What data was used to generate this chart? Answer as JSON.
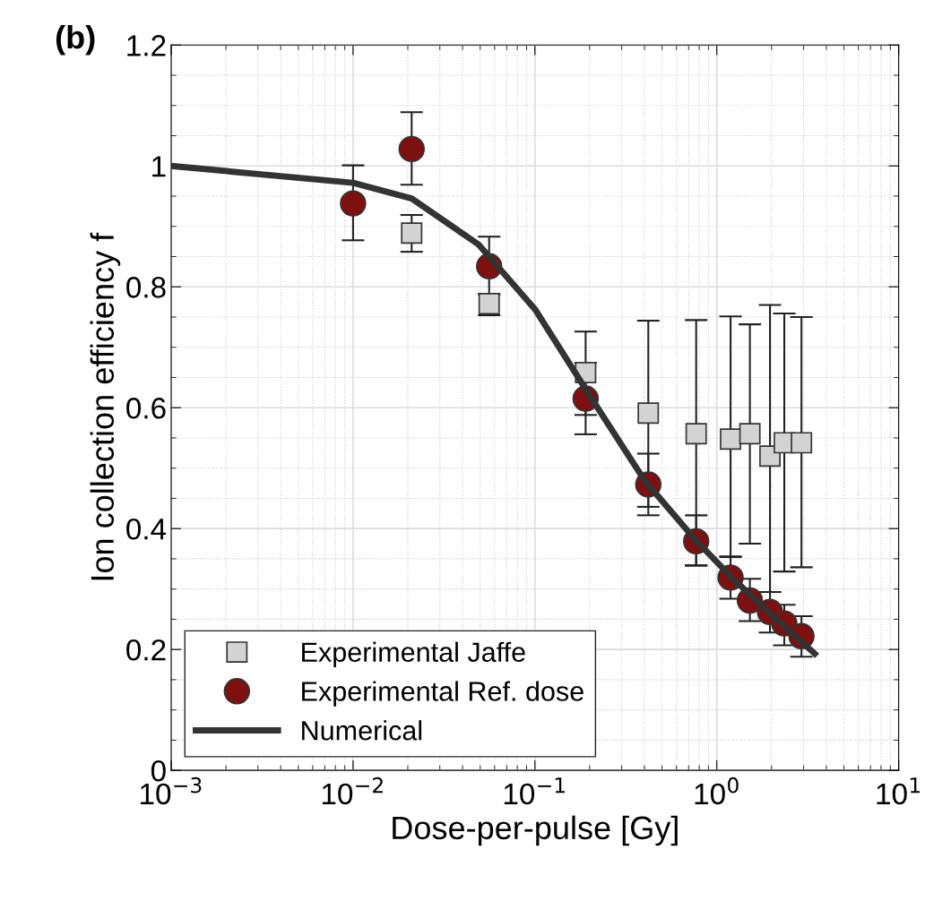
{
  "chart_data": {
    "type": "scatter",
    "title": "(b)",
    "xlabel": "Dose-per-pulse [Gy]",
    "ylabel": "Ion collection efficiency f",
    "log": "x",
    "xlim": [
      0.001,
      10
    ],
    "xticks": [
      {
        "value": 0.001,
        "label": "10$^{−3}$"
      },
      {
        "value": 0.01,
        "label": "10$^{−2}$"
      },
      {
        "value": 0.1,
        "label": "10$^{−1}$"
      },
      {
        "value": 1,
        "label": "10$^{0}$"
      },
      {
        "value": 10,
        "label": "10$^{1}$"
      }
    ],
    "ylim": [
      0,
      1.2
    ],
    "yticks": [
      0,
      0.2,
      0.4,
      0.6,
      0.8,
      1,
      1.2
    ],
    "grid": true,
    "legend": "bottom left",
    "series": [
      {
        "name": "Experimental Jaffe",
        "marker": "square",
        "color": "#d3d3d3",
        "x": [
          0.021,
          0.056,
          0.19,
          0.42,
          0.77,
          1.19,
          1.52,
          1.96,
          2.35,
          2.92
        ],
        "values": [
          0.889,
          0.772,
          0.658,
          0.591,
          0.557,
          0.548,
          0.557,
          0.52,
          0.542,
          0.542
        ],
        "errors": [
          [
            0.858,
            0.919
          ],
          [
            0.753,
            0.788
          ],
          [
            0.588,
            0.726
          ],
          [
            0.436,
            0.744
          ],
          [
            0.339,
            0.745
          ],
          [
            0.354,
            0.751
          ],
          [
            0.375,
            0.738
          ],
          [
            0.295,
            0.77
          ],
          [
            0.329,
            0.756
          ],
          [
            0.336,
            0.75
          ]
        ]
      },
      {
        "name": "Experimental Ref. dose",
        "marker": "circle",
        "color": "#7f1010",
        "x": [
          0.01,
          0.021,
          0.056,
          0.19,
          0.42,
          0.77,
          1.19,
          1.52,
          1.96,
          2.35,
          2.92
        ],
        "values": [
          0.938,
          1.028,
          0.834,
          0.615,
          0.473,
          0.379,
          0.319,
          0.281,
          0.262,
          0.243,
          0.222
        ],
        "errors": [
          [
            0.877,
            1.001
          ],
          [
            0.969,
            1.089
          ],
          [
            0.788,
            0.883
          ],
          [
            0.556,
            0.674
          ],
          [
            0.422,
            0.524
          ],
          [
            0.339,
            0.422
          ],
          [
            0.284,
            0.353
          ],
          [
            0.247,
            0.317
          ],
          [
            0.228,
            0.295
          ],
          [
            0.207,
            0.274
          ],
          [
            0.188,
            0.255
          ]
        ]
      },
      {
        "name": "Numerical",
        "type": "line",
        "marker": "none",
        "line_style": "solid",
        "color": "#333333",
        "x": [
          0.001,
          0.01,
          0.021,
          0.049,
          0.1,
          0.2,
          0.4,
          0.77,
          1.2,
          1.96,
          3.46
        ],
        "values": [
          1.0,
          0.972,
          0.946,
          0.87,
          0.763,
          0.62,
          0.48,
          0.38,
          0.32,
          0.26,
          0.193
        ]
      }
    ]
  }
}
